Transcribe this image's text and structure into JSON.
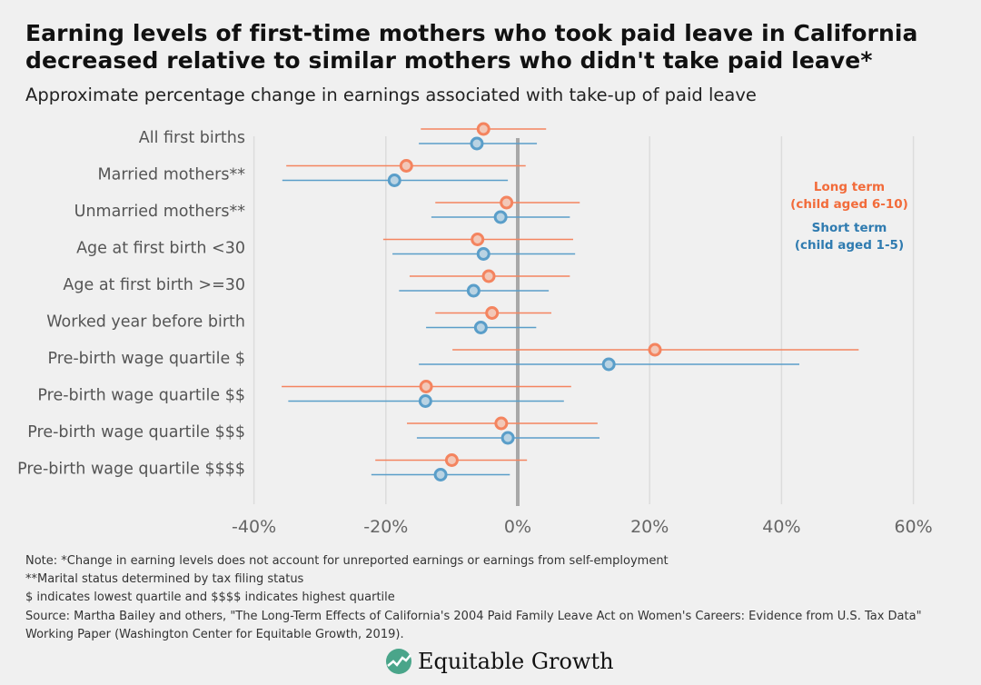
{
  "title": "Earning levels of first-time mothers who took paid leave in California decreased relative to similar mothers who didn't take paid leave*",
  "subtitle": "Approximate percentage change in earnings associated with take-up of paid leave",
  "chart_data": {
    "type": "dot-interval",
    "xlim": [
      -40,
      60
    ],
    "x_ticks": [
      -40,
      -20,
      0,
      20,
      40,
      60
    ],
    "x_tick_labels": [
      "-40%",
      "-20%",
      "0%",
      "20%",
      "40%",
      "60%"
    ],
    "grid": true,
    "legend_placement": "right",
    "categories": [
      "All first births",
      "Married mothers**",
      "Unmarried mothers**",
      "Age at first birth <30",
      "Age at first birth >=30",
      "Worked year before birth",
      "Pre-birth wage quartile $",
      "Pre-birth wage quartile $$",
      "Pre-birth wage quartile $$$",
      "Pre-birth wage quartile $$$$"
    ],
    "series": [
      {
        "name": "Long term (child aged 6-10)",
        "legend_lines": [
          "Long term",
          "(child aged 6-10)"
        ],
        "color": "#f4845f",
        "values": [
          -5.2,
          -16.9,
          -1.7,
          -6.1,
          -4.4,
          -3.9,
          20.8,
          -13.9,
          -2.5,
          -10.0
        ],
        "lower": [
          -14.7,
          -35.1,
          -12.5,
          -20.4,
          -16.4,
          -12.5,
          -9.9,
          -35.8,
          -16.8,
          -21.6
        ],
        "upper": [
          4.3,
          1.2,
          9.4,
          8.4,
          7.9,
          5.1,
          51.7,
          8.1,
          12.1,
          1.4
        ]
      },
      {
        "name": "Short term (child aged 1-5)",
        "legend_lines": [
          "Short term",
          "(child aged 1-5)"
        ],
        "color": "#5a9ec9",
        "values": [
          -6.2,
          -18.7,
          -2.6,
          -5.2,
          -6.7,
          -5.6,
          13.8,
          -14.0,
          -1.5,
          -11.7
        ],
        "lower": [
          -15.0,
          -35.7,
          -13.1,
          -19.0,
          -18.0,
          -13.9,
          -15.0,
          -34.8,
          -15.3,
          -22.2
        ],
        "upper": [
          2.9,
          -1.5,
          7.9,
          8.7,
          4.7,
          2.8,
          42.7,
          7.0,
          12.4,
          -1.2
        ]
      }
    ]
  },
  "notes": [
    "Note: *Change in earning levels does not account for unreported earnings or earnings from self-employment",
    "**Marital status determined by tax filing status",
    "$ indicates lowest quartile and $$$$ indicates highest quartile"
  ],
  "source": "Source: Martha Bailey and others, \"The Long-Term Effects of California's 2004 Paid Family Leave Act on Women's Careers: Evidence from U.S. Tax Data\" Working Paper (Washington Center for Equitable Growth, 2019).",
  "logo": {
    "text": "Equitable Growth",
    "color": "#4aa58a"
  }
}
